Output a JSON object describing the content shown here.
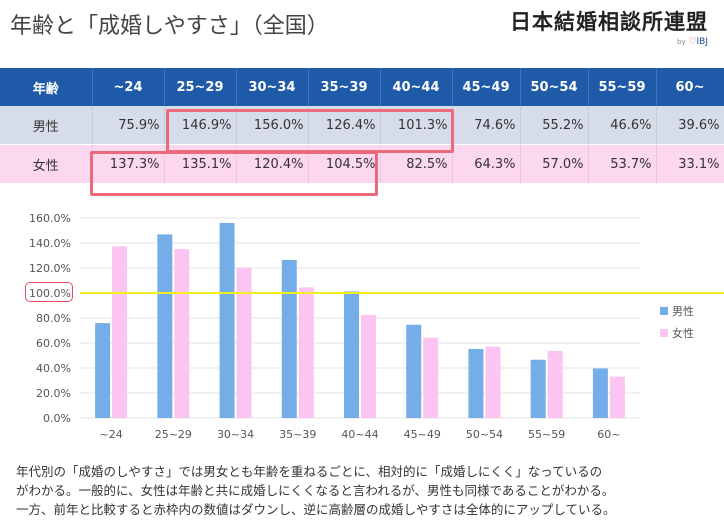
{
  "header": {
    "title": "年齢と「成婚しやすさ」（全国）",
    "brand_name": "日本結婚相談所連盟",
    "brand_by": "by",
    "brand_mark": "IBJ"
  },
  "table": {
    "corner": "年齢",
    "columns": [
      "~24",
      "25~29",
      "30~34",
      "35~39",
      "40~44",
      "45~49",
      "50~54",
      "55~59",
      "60~"
    ],
    "rows": [
      {
        "label": "男性",
        "values": [
          "75.9%",
          "146.9%",
          "156.0%",
          "126.4%",
          "101.3%",
          "74.6%",
          "55.2%",
          "46.6%",
          "39.6%"
        ]
      },
      {
        "label": "女性",
        "values": [
          "137.3%",
          "135.1%",
          "120.4%",
          "104.5%",
          "82.5%",
          "64.3%",
          "57.0%",
          "53.7%",
          "33.1%"
        ]
      }
    ]
  },
  "chart_data": {
    "type": "bar",
    "categories": [
      "~24",
      "25~29",
      "30~34",
      "35~39",
      "40~44",
      "45~49",
      "50~54",
      "55~59",
      "60~"
    ],
    "series": [
      {
        "name": "男性",
        "values": [
          75.9,
          146.9,
          156.0,
          126.4,
          101.3,
          74.6,
          55.2,
          46.6,
          39.6
        ],
        "color": "#75ade9"
      },
      {
        "name": "女性",
        "values": [
          137.3,
          135.1,
          120.4,
          104.5,
          82.5,
          64.3,
          57.0,
          53.7,
          33.1
        ],
        "color": "#fcc4f0"
      }
    ],
    "ylim": [
      0,
      160
    ],
    "y_ticks": [
      "0.0%",
      "20.0%",
      "40.0%",
      "60.0%",
      "80.0%",
      "100.0%",
      "120.0%",
      "140.0%",
      "160.0%"
    ],
    "reference_line": {
      "value": 100,
      "color": "#f0f020"
    },
    "grid": true,
    "legend_position": "right",
    "title": "",
    "xlabel": "",
    "ylabel": ""
  },
  "note": {
    "lines": [
      "年代別の「成婚のしやすさ」では男女とも年齢を重ねるごとに、相対的に「成婚しにくく」なっているの",
      "がわかる。一般的に、女性は年齢と共に成婚しにくくなると言われるが、男性も同様であることがわかる。",
      "一方、前年と比較すると赤枠内の数値はダウンし、逆に高齢層の成婚しやすさは全体的にアップしている。"
    ]
  }
}
